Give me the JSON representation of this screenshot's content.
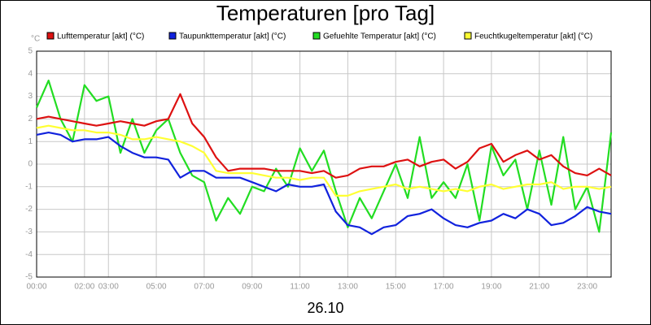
{
  "chart_data": {
    "type": "line",
    "title": "Temperaturen [pro Tag]",
    "y_unit": "°C",
    "x_label": "26.10",
    "x": [
      0,
      0.5,
      1,
      1.5,
      2,
      2.5,
      3,
      3.5,
      4,
      4.5,
      5,
      5.5,
      6,
      6.5,
      7,
      7.5,
      8,
      8.5,
      9,
      9.5,
      10,
      10.5,
      11,
      11.5,
      12,
      12.5,
      13,
      13.5,
      14,
      14.5,
      15,
      15.5,
      16,
      16.5,
      17,
      17.5,
      18,
      18.5,
      19,
      19.5,
      20,
      20.5,
      21,
      21.5,
      22,
      22.5,
      23,
      23.5,
      24
    ],
    "series": [
      {
        "name": "Lufttemperatur [akt] (°C)",
        "color": "#dd1111",
        "values": [
          2.0,
          2.1,
          2.0,
          1.9,
          1.8,
          1.7,
          1.8,
          1.9,
          1.8,
          1.7,
          1.9,
          2.0,
          3.1,
          1.8,
          1.2,
          0.3,
          -0.3,
          -0.2,
          -0.2,
          -0.2,
          -0.3,
          -0.3,
          -0.3,
          -0.4,
          -0.3,
          -0.6,
          -0.5,
          -0.2,
          -0.1,
          -0.1,
          0.1,
          0.2,
          -0.1,
          0.1,
          0.2,
          -0.2,
          0.1,
          0.7,
          0.9,
          0.1,
          0.4,
          0.6,
          0.2,
          0.4,
          -0.1,
          -0.4,
          -0.5,
          -0.2,
          -0.5
        ]
      },
      {
        "name": "Taupunkttemperatur [akt] (°C)",
        "color": "#1122dd",
        "values": [
          1.3,
          1.4,
          1.3,
          1.0,
          1.1,
          1.1,
          1.2,
          0.8,
          0.5,
          0.3,
          0.3,
          0.2,
          -0.6,
          -0.3,
          -0.3,
          -0.6,
          -0.6,
          -0.6,
          -0.8,
          -1.0,
          -1.2,
          -0.9,
          -1.0,
          -1.0,
          -0.9,
          -2.1,
          -2.7,
          -2.8,
          -3.1,
          -2.8,
          -2.7,
          -2.3,
          -2.2,
          -2.0,
          -2.4,
          -2.7,
          -2.8,
          -2.6,
          -2.5,
          -2.2,
          -2.4,
          -2.0,
          -2.2,
          -2.7,
          -2.6,
          -2.3,
          -1.9,
          -2.1,
          -2.2
        ]
      },
      {
        "name": "Gefuehlte Temperatur [akt] (°C)",
        "color": "#22dd22",
        "values": [
          2.5,
          3.7,
          2.0,
          1.0,
          3.5,
          2.8,
          3.0,
          0.5,
          2.0,
          0.5,
          1.5,
          2.0,
          0.5,
          -0.5,
          -0.8,
          -2.5,
          -1.5,
          -2.2,
          -1.0,
          -1.2,
          -0.2,
          -1.0,
          0.7,
          -0.3,
          0.6,
          -1.2,
          -2.8,
          -1.5,
          -2.4,
          -1.2,
          0.0,
          -1.5,
          1.2,
          -1.5,
          -0.8,
          -1.5,
          0.0,
          -2.5,
          0.8,
          -0.5,
          0.2,
          -2.0,
          0.6,
          -1.8,
          1.2,
          -2.0,
          -1.0,
          -3.0,
          1.4
        ]
      },
      {
        "name": "Feuchtkugeltemperatur [akt] (°C)",
        "color": "#ffff33",
        "values": [
          1.6,
          1.7,
          1.6,
          1.5,
          1.5,
          1.4,
          1.4,
          1.3,
          1.1,
          1.1,
          1.2,
          1.1,
          1.0,
          0.8,
          0.5,
          -0.3,
          -0.4,
          -0.4,
          -0.4,
          -0.5,
          -0.6,
          -0.6,
          -0.7,
          -0.6,
          -0.6,
          -1.4,
          -1.4,
          -1.2,
          -1.1,
          -1.0,
          -0.9,
          -1.1,
          -1.0,
          -1.1,
          -1.2,
          -1.1,
          -1.2,
          -1.0,
          -0.9,
          -1.1,
          -1.0,
          -0.9,
          -0.9,
          -0.8,
          -1.1,
          -1.0,
          -1.0,
          -1.1,
          -1.0
        ]
      }
    ],
    "xlim": [
      0,
      24
    ],
    "xticks": [
      {
        "value": 0,
        "label": "00:00"
      },
      {
        "value": 2,
        "label": "02:00"
      },
      {
        "value": 3,
        "label": "03:00"
      },
      {
        "value": 5,
        "label": "05:00"
      },
      {
        "value": 7,
        "label": "07:00"
      },
      {
        "value": 9,
        "label": "09:00"
      },
      {
        "value": 11,
        "label": "11:00"
      },
      {
        "value": 13,
        "label": "13:00"
      },
      {
        "value": 15,
        "label": "15:00"
      },
      {
        "value": 17,
        "label": "17:00"
      },
      {
        "value": 19,
        "label": "19:00"
      },
      {
        "value": 21,
        "label": "21:00"
      },
      {
        "value": 23,
        "label": "23:00"
      }
    ],
    "ylim": [
      -5,
      5
    ],
    "yticks": [
      -5,
      -4,
      -3,
      -2,
      -1,
      0,
      1,
      2,
      3,
      4,
      5
    ],
    "grid": true
  }
}
